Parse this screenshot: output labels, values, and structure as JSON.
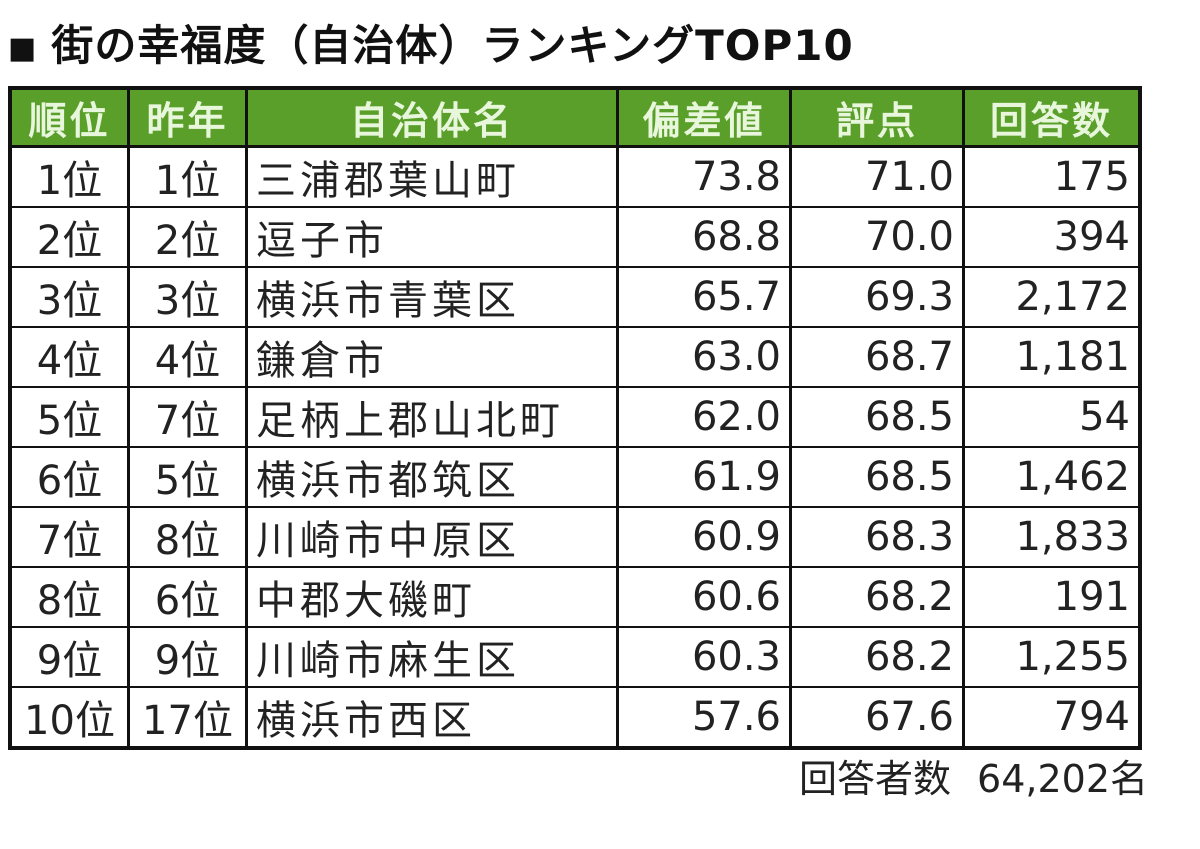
{
  "title": "街の幸福度（自治体）ランキングTOP10",
  "headers": [
    "順位",
    "昨年",
    "自治体名",
    "偏差値",
    "評点",
    "回答数"
  ],
  "rows": [
    [
      "1位",
      "1位",
      "三浦郡葉山町",
      "73.8",
      "71.0",
      "175"
    ],
    [
      "2位",
      "2位",
      "逗子市",
      "68.8",
      "70.0",
      "394"
    ],
    [
      "3位",
      "3位",
      "横浜市青葉区",
      "65.7",
      "69.3",
      "2,172"
    ],
    [
      "4位",
      "4位",
      "鎌倉市",
      "63.0",
      "68.7",
      "1,181"
    ],
    [
      "5位",
      "7位",
      "足柄上郡山北町",
      "62.0",
      "68.5",
      "54"
    ],
    [
      "6位",
      "5位",
      "横浜市都筑区",
      "61.9",
      "68.5",
      "1,462"
    ],
    [
      "7位",
      "8位",
      "川崎市中原区",
      "60.9",
      "68.3",
      "1,833"
    ],
    [
      "8位",
      "6位",
      "中郡大磯町",
      "60.6",
      "68.2",
      "191"
    ],
    [
      "9位",
      "9位",
      "川崎市麻生区",
      "60.3",
      "68.2",
      "1,255"
    ],
    [
      "10位",
      "17位",
      "横浜市西区",
      "57.6",
      "67.6",
      "794"
    ]
  ],
  "footer": {
    "label": "回答者数",
    "value": "64,202名"
  },
  "colors": {
    "header_bg": "#5b9f2b",
    "header_text": "#e8f7dc"
  }
}
